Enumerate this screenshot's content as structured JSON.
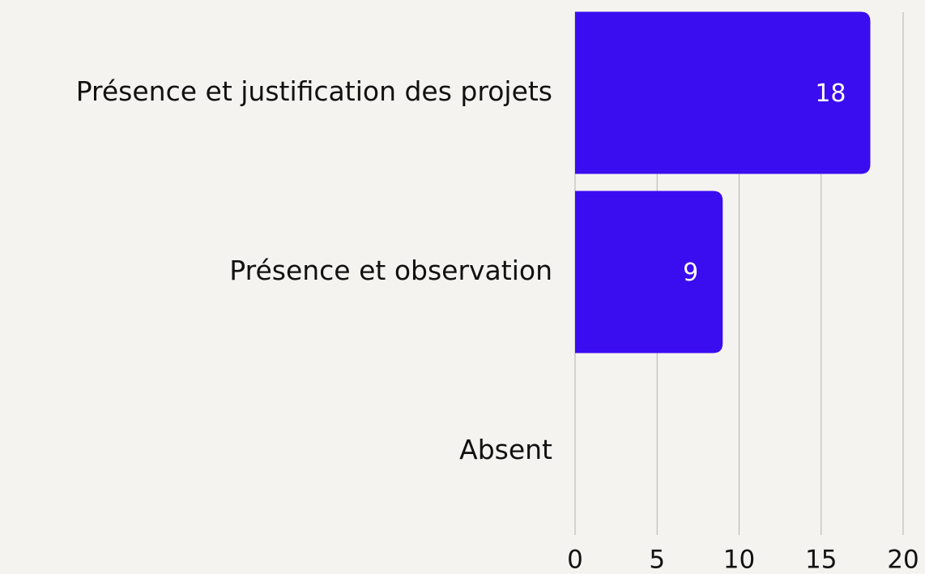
{
  "chart_data": {
    "type": "bar",
    "orientation": "horizontal",
    "categories": [
      "Présence et justification des projets",
      "Présence et observation",
      "Absent"
    ],
    "values": [
      18,
      9,
      0
    ],
    "color": "#3a0cf0",
    "xlim": [
      0,
      20
    ],
    "xticks": [
      0,
      5,
      10,
      15,
      20
    ],
    "grid": true
  }
}
